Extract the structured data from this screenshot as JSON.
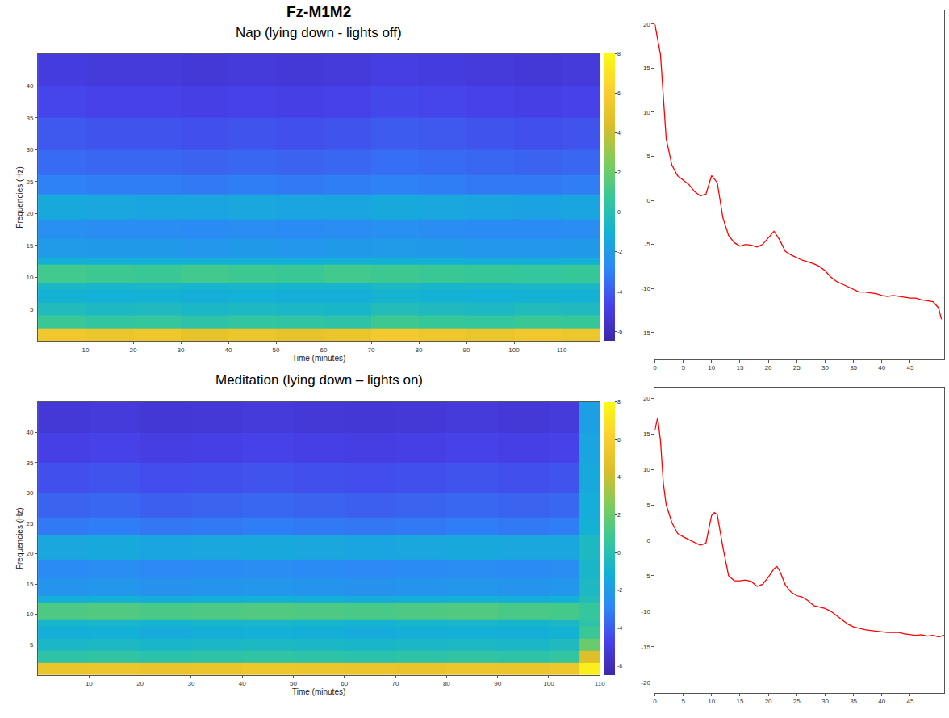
{
  "title": "Fz-M1M2",
  "chart_data": [
    {
      "type": "heatmap",
      "title": "Nap (lying down - lights off)",
      "x_label": "Time (minutes)",
      "y_label": "Frequencies (Hz)",
      "x": [
        0,
        10,
        20,
        30,
        40,
        50,
        60,
        70,
        80,
        90,
        100,
        110,
        118
      ],
      "y": [
        0,
        2,
        4,
        6,
        8,
        9,
        12,
        13,
        16,
        19,
        23,
        26,
        30,
        35,
        40,
        45
      ],
      "z": [
        [
          5.5,
          5.2,
          5.4,
          5,
          5.3,
          5,
          5.2,
          5.6,
          5.4,
          5.2,
          5.5,
          5.3
        ],
        [
          0.8,
          0.5,
          0.6,
          0.3,
          0.5,
          0.4,
          0.3,
          0.9,
          0.7,
          0.6,
          0.8,
          0.7
        ],
        [
          -0.3,
          -0.5,
          -0.4,
          -0.6,
          -0.5,
          -0.6,
          -0.7,
          -0.2,
          -0.4,
          -0.5,
          -0.3,
          -0.4
        ],
        [
          -1,
          -1.1,
          -1,
          -1.2,
          -1.1,
          -1.2,
          -1.2,
          -0.9,
          -1,
          -1.1,
          -1,
          -1
        ],
        [
          -0.6,
          -0.7,
          -0.6,
          -0.8,
          -0.7,
          -0.8,
          -0.8,
          -0.5,
          -0.7,
          -0.7,
          -0.6,
          -0.6
        ],
        [
          1,
          0.9,
          0.8,
          1,
          0.9,
          0.8,
          1,
          0.9,
          0.8,
          0.7,
          0.6,
          0.7
        ],
        [
          -1,
          -1.1,
          -1.1,
          -1,
          -1.1,
          -1.1,
          -1,
          -1,
          -1.1,
          -1.2,
          -1.2,
          -1.1
        ],
        [
          -2,
          -2.1,
          -2.1,
          -2.2,
          -2.1,
          -2.2,
          -2.1,
          -2,
          -2.1,
          -2.2,
          -2.2,
          -2.1
        ],
        [
          -2.5,
          -2.6,
          -2.6,
          -2.7,
          -2.6,
          -2.7,
          -2.6,
          -2.5,
          -2.6,
          -2.7,
          -2.7,
          -2.6
        ],
        [
          -1.4,
          -1.5,
          -1.6,
          -1.6,
          -1.5,
          -1.6,
          -1.6,
          -1.4,
          -1.5,
          -1.6,
          -1.7,
          -1.6
        ],
        [
          -3,
          -3.1,
          -3.1,
          -3.2,
          -3.1,
          -3.2,
          -3.1,
          -3,
          -3.1,
          -3.2,
          -3.2,
          -3.1
        ],
        [
          -3.6,
          -3.7,
          -3.7,
          -3.8,
          -3.7,
          -3.8,
          -3.7,
          -3.5,
          -3.6,
          -3.7,
          -3.8,
          -3.7
        ],
        [
          -4.1,
          -4.2,
          -4.2,
          -4.3,
          -4.2,
          -4.3,
          -4.2,
          -4,
          -4.1,
          -4.2,
          -4.3,
          -4.2
        ],
        [
          -4.6,
          -4.7,
          -4.7,
          -4.8,
          -4.7,
          -4.8,
          -4.7,
          -4.5,
          -4.6,
          -4.7,
          -4.8,
          -4.7
        ],
        [
          -5,
          -5.1,
          -5.1,
          -5.2,
          -5.1,
          -5.2,
          -5.1,
          -4.9,
          -5,
          -5.1,
          -5.2,
          -5.1
        ]
      ],
      "xlim": [
        0,
        118
      ],
      "xticks": [
        10,
        20,
        30,
        40,
        50,
        60,
        70,
        80,
        90,
        100,
        110
      ],
      "ylim": [
        0,
        45
      ],
      "yticks": [
        5,
        10,
        15,
        20,
        25,
        30,
        35,
        40
      ],
      "colorbar_range": [
        -6.5,
        8
      ],
      "colorbar_ticks": [
        -6,
        -4,
        -2,
        0,
        2,
        4,
        6,
        8
      ]
    },
    {
      "type": "line",
      "color": "#ff0000",
      "x": [
        0,
        1,
        2,
        3,
        4,
        5,
        6,
        7,
        8,
        9,
        10,
        11,
        12,
        13,
        14,
        15,
        16,
        17,
        18,
        19,
        20,
        21,
        22,
        23,
        24,
        25,
        26,
        27,
        28,
        29,
        30,
        31,
        32,
        33,
        34,
        35,
        36,
        37,
        38,
        39,
        40,
        41,
        42,
        43,
        44,
        45,
        46,
        47,
        48,
        49,
        50,
        50.5
      ],
      "values": [
        20,
        16.5,
        7,
        4,
        2.8,
        2.3,
        1.8,
        1,
        0.5,
        0.7,
        2.8,
        2,
        -2,
        -4,
        -4.8,
        -5.2,
        -5,
        -5.1,
        -5.3,
        -5,
        -4.2,
        -3.5,
        -4.5,
        -5.8,
        -6.2,
        -6.5,
        -6.8,
        -7,
        -7.2,
        -7.5,
        -8,
        -8.7,
        -9.2,
        -9.5,
        -9.8,
        -10.1,
        -10.4,
        -10.4,
        -10.5,
        -10.6,
        -10.8,
        -10.9,
        -10.8,
        -10.9,
        -11,
        -11.1,
        -11.1,
        -11.3,
        -11.4,
        -11.5,
        -12.2,
        -13.5
      ],
      "xlim": [
        0,
        51
      ],
      "xticks": [
        0,
        5,
        10,
        15,
        20,
        25,
        30,
        35,
        40,
        45
      ],
      "ylim": [
        -18,
        21.5
      ],
      "yticks": [
        -15,
        -10,
        -5,
        0,
        5,
        10,
        15,
        20
      ]
    },
    {
      "type": "heatmap",
      "title": "Meditation (lying down – lights on)",
      "x_label": "Time (minutes)",
      "y_label": "Frequencies (Hz)",
      "x": [
        0,
        10,
        20,
        30,
        40,
        50,
        60,
        70,
        80,
        90,
        100,
        106,
        110
      ],
      "y": [
        0,
        2,
        4,
        6,
        8,
        9,
        12,
        13,
        16,
        19,
        23,
        26,
        30,
        35,
        40,
        45
      ],
      "z": [
        [
          5.2,
          5.3,
          5.1,
          5.2,
          5.4,
          5.3,
          5.2,
          5.1,
          5.3,
          5.2,
          5.4,
          7.5
        ],
        [
          0.3,
          0.4,
          0.2,
          0.3,
          0.4,
          0.3,
          0.2,
          0.3,
          0.4,
          0.3,
          0.5,
          4.5
        ],
        [
          -0.6,
          -0.5,
          -0.7,
          -0.6,
          -0.5,
          -0.6,
          -0.7,
          -0.6,
          -0.5,
          -0.6,
          -0.4,
          2
        ],
        [
          -1.2,
          -1.1,
          -1.3,
          -1.2,
          -1.1,
          -1.2,
          -1.3,
          -1.2,
          -1.1,
          -1.2,
          -1,
          0.8
        ],
        [
          -0.8,
          -0.7,
          -0.9,
          -0.8,
          -0.7,
          -0.8,
          -0.9,
          -0.8,
          -0.7,
          -0.8,
          -0.6,
          0.3
        ],
        [
          1.3,
          1.4,
          1.2,
          1.3,
          1.4,
          1.3,
          1.2,
          1.3,
          1.4,
          1.2,
          1.1,
          0.6
        ],
        [
          -1.2,
          -1.1,
          -1.3,
          -1.2,
          -1.1,
          -1.2,
          -1.3,
          -1.2,
          -1.1,
          -1.2,
          -1.1,
          -0.2
        ],
        [
          -2.3,
          -2.2,
          -2.4,
          -2.3,
          -2.2,
          -2.3,
          -2.4,
          -2.3,
          -2.2,
          -2.3,
          -2.2,
          -0.5
        ],
        [
          -2.7,
          -2.6,
          -2.8,
          -2.7,
          -2.6,
          -2.7,
          -2.8,
          -2.7,
          -2.6,
          -2.7,
          -2.6,
          -0.7
        ],
        [
          -1.5,
          -1.4,
          -1.6,
          -1.5,
          -1.4,
          -1.5,
          -1.6,
          -1.5,
          -1.4,
          -1.5,
          -1.5,
          -0.5
        ],
        [
          -3.2,
          -3.1,
          -3.3,
          -3.2,
          -3.1,
          -3.2,
          -3.3,
          -3.2,
          -3.1,
          -3.2,
          -3.1,
          -1
        ],
        [
          -3.8,
          -3.7,
          -3.9,
          -3.8,
          -3.7,
          -3.8,
          -3.9,
          -3.8,
          -3.7,
          -3.8,
          -3.7,
          -1.2
        ],
        [
          -4.3,
          -4.2,
          -4.4,
          -4.3,
          -4.2,
          -4.3,
          -4.4,
          -4.3,
          -4.2,
          -4.3,
          -4.2,
          -1.4
        ],
        [
          -4.8,
          -4.7,
          -4.9,
          -4.8,
          -4.7,
          -4.8,
          -4.9,
          -4.8,
          -4.7,
          -4.8,
          -4.7,
          -1.6
        ],
        [
          -5.2,
          -5.1,
          -5.3,
          -5.2,
          -5.1,
          -5.2,
          -5.3,
          -5.2,
          -5.1,
          -5.2,
          -5.1,
          -1.8
        ]
      ],
      "xlim": [
        0,
        110
      ],
      "xticks": [
        10,
        20,
        30,
        40,
        50,
        60,
        70,
        80,
        90,
        100,
        110
      ],
      "ylim": [
        0,
        45
      ],
      "yticks": [
        5,
        10,
        15,
        20,
        25,
        30,
        35,
        40
      ],
      "colorbar_range": [
        -6.5,
        8
      ],
      "colorbar_ticks": [
        -6,
        -4,
        -2,
        0,
        2,
        4,
        6,
        8
      ]
    },
    {
      "type": "line",
      "color": "#ff0000",
      "x": [
        0,
        0.5,
        1,
        1.5,
        2,
        3,
        4,
        5,
        6,
        7,
        8,
        9,
        10,
        10.5,
        11,
        12,
        13,
        14,
        15,
        16,
        17,
        18,
        19,
        20,
        21,
        21.5,
        22,
        23,
        24,
        25,
        26,
        27,
        28,
        29,
        30,
        31,
        32,
        33,
        34,
        35,
        36,
        37,
        38,
        39,
        40,
        41,
        42,
        43,
        44,
        45,
        46,
        47,
        48,
        49,
        50,
        51
      ],
      "values": [
        15.5,
        17.3,
        14,
        8,
        5,
        2.5,
        1,
        0.5,
        0.1,
        -0.3,
        -0.7,
        -0.4,
        3.5,
        3.9,
        3.6,
        -1,
        -5,
        -5.7,
        -5.7,
        -5.6,
        -5.8,
        -6.5,
        -6.2,
        -5.2,
        -4,
        -3.7,
        -4.3,
        -6.3,
        -7.3,
        -7.8,
        -8,
        -8.5,
        -9.2,
        -9.4,
        -9.6,
        -10,
        -10.6,
        -11.1,
        -11.8,
        -12.2,
        -12.4,
        -12.6,
        -12.7,
        -12.8,
        -12.9,
        -13,
        -13,
        -13,
        -13.2,
        -13.3,
        -13.4,
        -13.3,
        -13.5,
        -13.4,
        -13.6,
        -13.4
      ],
      "xlim": [
        0,
        51
      ],
      "xticks": [
        0,
        5,
        10,
        15,
        20,
        25,
        30,
        35,
        40,
        45
      ],
      "ylim": [
        -21.5,
        21.5
      ],
      "yticks": [
        -20,
        -15,
        -10,
        -5,
        0,
        5,
        10,
        15,
        20
      ]
    }
  ]
}
